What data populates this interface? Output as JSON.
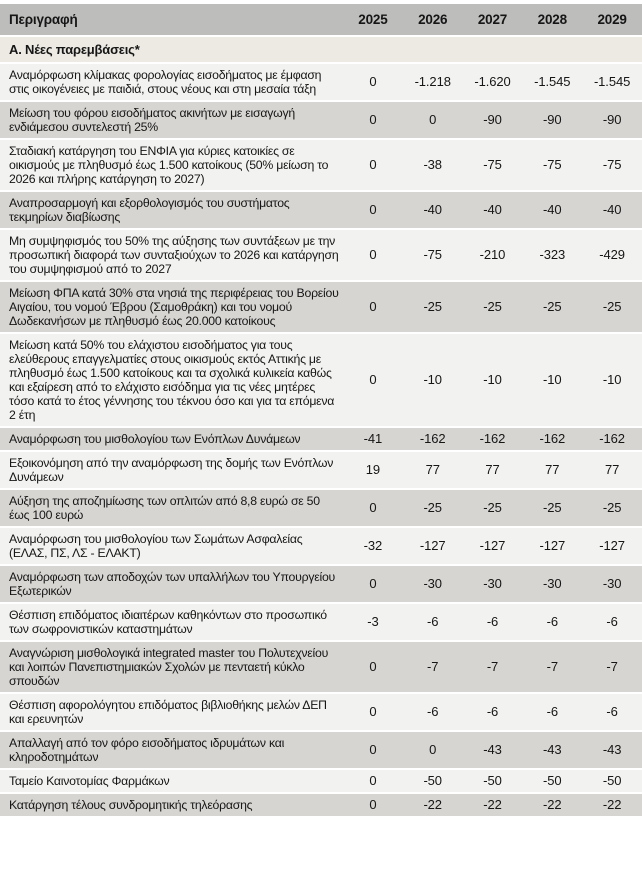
{
  "colors": {
    "header_bg": "#bdbdbc",
    "section_bg": "#eceae3",
    "row_light": "#f2f2f0",
    "row_dark": "#d7d5d2",
    "text": "#161616"
  },
  "table": {
    "headers": [
      "Περιγραφή",
      "2025",
      "2026",
      "2027",
      "2028",
      "2029"
    ],
    "section_header": "Α. Νέες παρεμβάσεις*",
    "rows": [
      {
        "description": "Αναμόρφωση κλίμακας φορολογίας εισοδήματος με έμφαση στις οικογένειες με παιδιά, στους νέους και στη μεσαία τάξη",
        "values": [
          "0",
          "-1.218",
          "-1.620",
          "-1.545",
          "-1.545"
        ]
      },
      {
        "description": "Μείωση του φόρου εισοδήματος ακινήτων με εισαγωγή ενδιάμεσου συντελεστή 25%",
        "values": [
          "0",
          "0",
          "-90",
          "-90",
          "-90"
        ]
      },
      {
        "description": "Σταδιακή κατάργηση του ΕΝΦΙΑ για κύριες κατοικίες σε οικισμούς με πληθυσμό έως 1.500 κατοίκους (50% μείωση το 2026 και πλήρης κατάργηση το 2027)",
        "values": [
          "0",
          "-38",
          "-75",
          "-75",
          "-75"
        ]
      },
      {
        "description": "Αναπροσαρμογή και εξορθολογισμός του συστήματος τεκμηρίων διαβίωσης",
        "values": [
          "0",
          "-40",
          "-40",
          "-40",
          "-40"
        ]
      },
      {
        "description": "Μη συμψηφισμός του 50% της αύξησης των συντάξεων με την προσωπική διαφορά των συνταξιούχων το 2026 και κατάργηση του συμψηφισμού από το 2027",
        "values": [
          "0",
          "-75",
          "-210",
          "-323",
          "-429"
        ]
      },
      {
        "description": "Μείωση ΦΠΑ κατά 30% στα νησιά της περιφέρειας του Βορείου Αιγαίου, του νομού Έβρου (Σαμοθράκη) και του νομού Δωδεκανήσων με πληθυσμό έως 20.000 κατοίκους",
        "values": [
          "0",
          "-25",
          "-25",
          "-25",
          "-25"
        ]
      },
      {
        "description": "Μείωση κατά 50% του ελάχιστου εισοδήματος για τους ελεύθερους επαγγελματίες στους οικισμούς εκτός Αττικής με πληθυσμό έως 1.500 κατοίκους και τα σχολικά κυλικεία καθώς και εξαίρεση από το ελάχιστο εισόδημα για τις νέες μητέρες τόσο κατά το έτος γέννησης του τέκνου όσο και για τα επόμενα 2 έτη",
        "values": [
          "0",
          "-10",
          "-10",
          "-10",
          "-10"
        ]
      },
      {
        "description": "Αναμόρφωση του μισθολογίου των Ενόπλων Δυνάμεων",
        "values": [
          "-41",
          "-162",
          "-162",
          "-162",
          "-162"
        ]
      },
      {
        "description": "Εξοικονόμηση από την αναμόρφωση της δομής των Ενόπλων Δυνάμεων",
        "values": [
          "19",
          "77",
          "77",
          "77",
          "77"
        ]
      },
      {
        "description": "Αύξηση της αποζημίωσης των οπλιτών από 8,8 ευρώ σε 50 έως 100 ευρώ",
        "values": [
          "0",
          "-25",
          "-25",
          "-25",
          "-25"
        ]
      },
      {
        "description": "Αναμόρφωση του μισθολογίου των Σωμάτων Ασφαλείας (ΕΛΑΣ, ΠΣ, ΛΣ - ΕΛΑΚΤ)",
        "values": [
          "-32",
          "-127",
          "-127",
          "-127",
          "-127"
        ]
      },
      {
        "description": "Αναμόρφωση των αποδοχών των υπαλλήλων του Υπουργείου Εξωτερικών",
        "values": [
          "0",
          "-30",
          "-30",
          "-30",
          "-30"
        ]
      },
      {
        "description": "Θέσπιση επιδόματος ιδιαιτέρων καθηκόντων στο προσωπικό των σωφρονιστικών καταστημάτων",
        "values": [
          "-3",
          "-6",
          "-6",
          "-6",
          "-6"
        ]
      },
      {
        "description": "Αναγνώριση μισθολογικά integrated master του Πολυτεχνείου και λοιπών Πανεπιστημιακών Σχολών με πενταετή κύκλο σπουδών",
        "values": [
          "0",
          "-7",
          "-7",
          "-7",
          "-7"
        ]
      },
      {
        "description": "Θέσπιση αφορολόγητου επιδόματος βιβλιοθήκης μελών ΔΕΠ και ερευνητών",
        "values": [
          "0",
          "-6",
          "-6",
          "-6",
          "-6"
        ]
      },
      {
        "description": "Απαλλαγή από τον φόρο εισοδήματος ιδρυμάτων και κληροδοτημάτων",
        "values": [
          "0",
          "0",
          "-43",
          "-43",
          "-43"
        ]
      },
      {
        "description": "Ταμείο Καινοτομίας Φαρμάκων",
        "values": [
          "0",
          "-50",
          "-50",
          "-50",
          "-50"
        ]
      },
      {
        "description": "Κατάργηση τέλους συνδρομητικής τηλεόρασης",
        "values": [
          "0",
          "-22",
          "-22",
          "-22",
          "-22"
        ]
      }
    ]
  }
}
